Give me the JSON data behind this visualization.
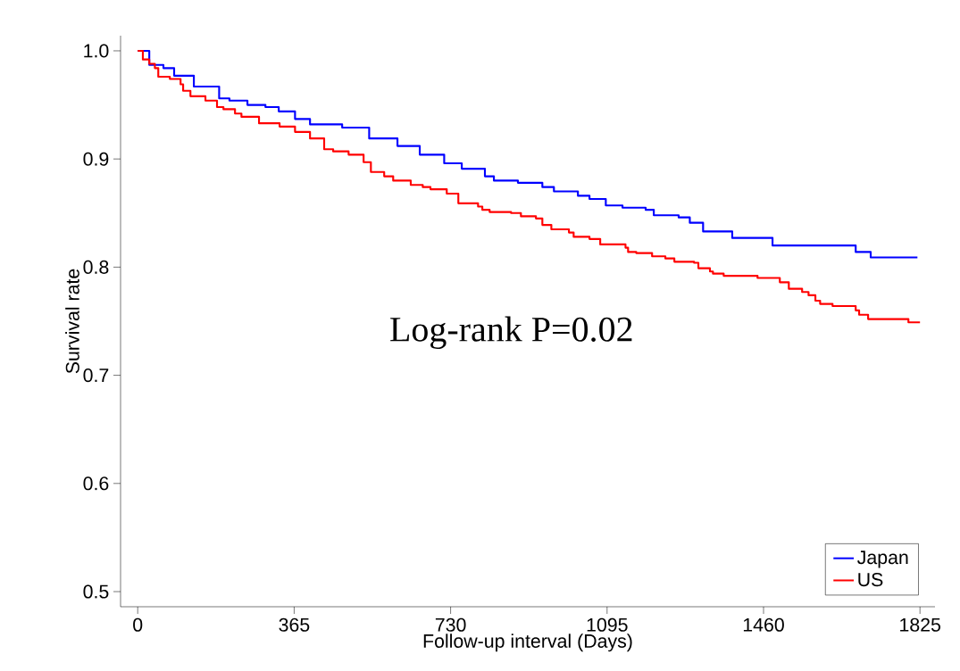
{
  "chart_data": {
    "type": "step",
    "xlabel": "Follow-up interval (Days)",
    "ylabel": "Survival rate",
    "annotations": [
      "Log-rank P=0.02"
    ],
    "xlim": [
      -40,
      1860
    ],
    "ylim": [
      0.486,
      1.014
    ],
    "xticks": [
      0,
      365,
      730,
      1095,
      1460,
      1825
    ],
    "yticks": [
      {
        "value": 0.5,
        "label": "0.5"
      },
      0.6,
      0.7,
      0.8,
      0.9,
      {
        "value": 1.0,
        "label": "1.0"
      }
    ],
    "grid": false,
    "legend": "bottom right",
    "line_style": "solid",
    "marker": "none",
    "series": [
      {
        "name": "Japan",
        "color": "#0000ff",
        "x": [
          0,
          27,
          60,
          85,
          131,
          190,
          214,
          256,
          298,
          329,
          367,
          402,
          477,
          540,
          606,
          658,
          715,
          756,
          810,
          831,
          887,
          944,
          971,
          1027,
          1054,
          1092,
          1131,
          1185,
          1204,
          1262,
          1288,
          1319,
          1387,
          1481,
          1675,
          1710,
          1819
        ],
        "values": [
          1.0,
          0.987,
          0.984,
          0.977,
          0.967,
          0.956,
          0.954,
          0.95,
          0.948,
          0.944,
          0.937,
          0.932,
          0.929,
          0.919,
          0.912,
          0.904,
          0.896,
          0.891,
          0.884,
          0.88,
          0.878,
          0.874,
          0.87,
          0.866,
          0.863,
          0.857,
          0.855,
          0.853,
          0.848,
          0.846,
          0.841,
          0.833,
          0.827,
          0.82,
          0.814,
          0.809,
          0.809
        ]
      },
      {
        "name": "US",
        "color": "#ff0000",
        "x": [
          0,
          12,
          27,
          40,
          48,
          75,
          100,
          106,
          123,
          158,
          185,
          200,
          227,
          242,
          283,
          331,
          367,
          402,
          435,
          456,
          492,
          527,
          544,
          575,
          596,
          637,
          665,
          683,
          721,
          748,
          794,
          804,
          821,
          871,
          894,
          929,
          944,
          965,
          1006,
          1017,
          1054,
          1079,
          1138,
          1144,
          1163,
          1200,
          1231,
          1252,
          1298,
          1308,
          1335,
          1342,
          1367,
          1446,
          1498,
          1519,
          1550,
          1565,
          1581,
          1592,
          1621,
          1675,
          1683,
          1704,
          1798,
          1825
        ],
        "values": [
          1.0,
          0.992,
          0.988,
          0.984,
          0.976,
          0.974,
          0.969,
          0.963,
          0.958,
          0.954,
          0.948,
          0.946,
          0.942,
          0.939,
          0.933,
          0.93,
          0.925,
          0.919,
          0.909,
          0.907,
          0.904,
          0.897,
          0.888,
          0.884,
          0.88,
          0.876,
          0.874,
          0.872,
          0.868,
          0.859,
          0.856,
          0.853,
          0.851,
          0.85,
          0.847,
          0.845,
          0.839,
          0.835,
          0.832,
          0.828,
          0.826,
          0.821,
          0.818,
          0.814,
          0.813,
          0.81,
          0.808,
          0.805,
          0.804,
          0.799,
          0.796,
          0.794,
          0.792,
          0.79,
          0.786,
          0.78,
          0.777,
          0.774,
          0.769,
          0.766,
          0.764,
          0.76,
          0.756,
          0.752,
          0.749,
          0.749
        ]
      }
    ]
  }
}
